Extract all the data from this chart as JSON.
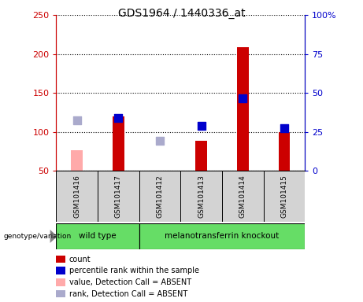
{
  "title": "GDS1964 / 1440336_at",
  "samples": [
    "GSM101416",
    "GSM101417",
    "GSM101412",
    "GSM101413",
    "GSM101414",
    "GSM101415"
  ],
  "count_values": [
    null,
    120,
    50,
    88,
    209,
    100
  ],
  "count_absent": [
    76,
    null,
    null,
    null,
    null,
    null
  ],
  "percentile_values": [
    null,
    118,
    null,
    108,
    143,
    105
  ],
  "percentile_absent": [
    115,
    null,
    88,
    null,
    null,
    null
  ],
  "ylim_left": [
    50,
    250
  ],
  "ylim_right": [
    0,
    100
  ],
  "yticks_left": [
    50,
    100,
    150,
    200,
    250
  ],
  "yticks_right": [
    0,
    25,
    50,
    75,
    100
  ],
  "ytick_labels_right": [
    "0",
    "25",
    "50",
    "75",
    "100%"
  ],
  "bar_width": 0.28,
  "square_size": 45,
  "group1_label": "wild type",
  "group2_label": "melanotransferrin knockout",
  "group_label_prefix": "genotype/variation",
  "color_count": "#cc0000",
  "color_count_absent": "#ffaaaa",
  "color_percentile": "#0000cc",
  "color_percentile_absent": "#aaaacc",
  "bg_plot": "#ffffff",
  "legend_items": [
    {
      "color": "#cc0000",
      "label": "count"
    },
    {
      "color": "#0000cc",
      "label": "percentile rank within the sample"
    },
    {
      "color": "#ffaaaa",
      "label": "value, Detection Call = ABSENT"
    },
    {
      "color": "#aaaacc",
      "label": "rank, Detection Call = ABSENT"
    }
  ]
}
